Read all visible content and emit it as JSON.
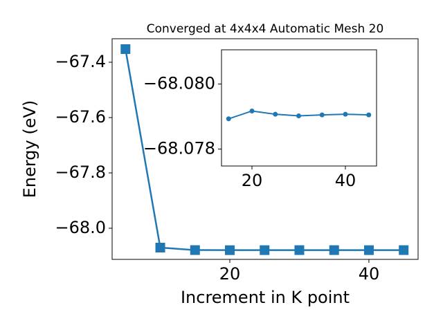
{
  "chart_data": [
    {
      "type": "line",
      "title": "Converged at 4x4x4 Automatic Mesh 20",
      "xlabel": "Increment in K point",
      "ylabel": "Energy (eV)",
      "x": [
        5,
        10,
        15,
        20,
        25,
        30,
        35,
        40,
        45
      ],
      "series": [
        {
          "color": "#1f77b4",
          "marker": "square",
          "values": [
            -67.3525,
            -68.07,
            -68.0789,
            -68.0792,
            -68.0791,
            -68.079,
            -68.079,
            -68.0791,
            -68.079
          ]
        }
      ],
      "xlim": [
        3.08,
        47.07
      ],
      "ylim": [
        -68.1125,
        -67.315
      ],
      "xticks": [
        20,
        40
      ],
      "yticks": [
        {
          "value": -68.0,
          "label": "−68.0"
        },
        {
          "value": -67.8,
          "label": "−67.8"
        },
        {
          "value": -67.6,
          "label": "−67.6"
        },
        {
          "value": -67.4,
          "label": "−67.4"
        }
      ]
    },
    {
      "type": "line",
      "inset": true,
      "x": [
        15,
        20,
        25,
        30,
        35,
        40,
        45
      ],
      "series": [
        {
          "color": "#1f77b4",
          "marker": "circle",
          "values": [
            -68.07893,
            -68.07917,
            -68.07907,
            -68.07902,
            -68.07905,
            -68.07907,
            -68.07905
          ]
        }
      ],
      "xlim": [
        13.48,
        46.67
      ],
      "ylim": [
        -68.07748,
        -68.08105
      ],
      "xticks": [
        20,
        40
      ],
      "yticks": [
        {
          "value": -68.08,
          "label": "−68.080"
        },
        {
          "value": -68.078,
          "label": "−68.078"
        }
      ]
    }
  ]
}
